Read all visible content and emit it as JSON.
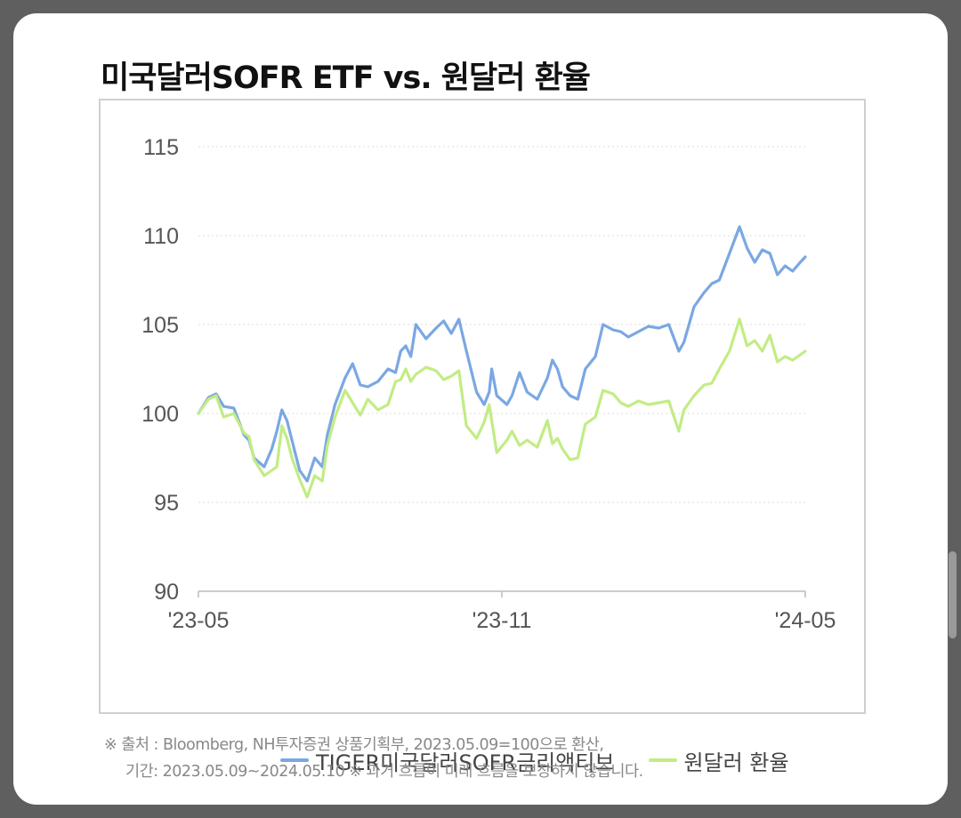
{
  "title": "미국달러SOFR ETF vs. 원달러 환율",
  "footnote": {
    "line1": "※ 출처 : Bloomberg, NH투자증권 상품기획부, 2023.05.09=100으로 환산,",
    "line2": "기간:  2023.05.09~2024.05.10  ※ 과거 흐름이 미래 흐름을 보장하지 않습니다."
  },
  "chart_data": {
    "type": "line",
    "title": "미국달러SOFR ETF vs. 원달러 환율",
    "xlabel": "",
    "ylabel": "",
    "ylim": [
      90,
      115
    ],
    "yticks": [
      90,
      95,
      100,
      105,
      110,
      115
    ],
    "xlim": [
      0,
      12
    ],
    "x_ticks": [
      {
        "x": 0,
        "label": "'23-05"
      },
      {
        "x": 6,
        "label": "'23-11"
      },
      {
        "x": 12,
        "label": "'24-05"
      }
    ],
    "grid": true,
    "legend_position": "bottom",
    "x": [
      0,
      0.2,
      0.35,
      0.5,
      0.7,
      0.9,
      1.0,
      1.1,
      1.3,
      1.45,
      1.55,
      1.65,
      1.75,
      1.85,
      2.0,
      2.15,
      2.3,
      2.45,
      2.55,
      2.7,
      2.9,
      3.05,
      3.2,
      3.35,
      3.55,
      3.75,
      3.9,
      4.0,
      4.1,
      4.2,
      4.3,
      4.5,
      4.7,
      4.85,
      5.0,
      5.15,
      5.3,
      5.5,
      5.65,
      5.75,
      5.8,
      5.9,
      6.1,
      6.2,
      6.35,
      6.5,
      6.7,
      6.9,
      7.0,
      7.1,
      7.2,
      7.35,
      7.5,
      7.65,
      7.85,
      8.0,
      8.2,
      8.35,
      8.5,
      8.7,
      8.9,
      9.1,
      9.3,
      9.5,
      9.6,
      9.8,
      10.0,
      10.15,
      10.3,
      10.5,
      10.7,
      10.85,
      11.0,
      11.15,
      11.3,
      11.45,
      11.6,
      11.75,
      11.9,
      12.0
    ],
    "series": [
      {
        "name": "TIGER미국달러SOFR금리액티브",
        "color": "#7ba7e3",
        "values": [
          100.0,
          100.9,
          101.1,
          100.4,
          100.3,
          98.8,
          98.5,
          97.5,
          97.0,
          98.0,
          99.0,
          100.2,
          99.6,
          98.5,
          96.8,
          96.2,
          97.5,
          97.0,
          98.8,
          100.5,
          102.0,
          102.8,
          101.6,
          101.5,
          101.8,
          102.5,
          102.3,
          103.5,
          103.8,
          103.2,
          105.0,
          104.2,
          104.8,
          105.2,
          104.5,
          105.3,
          103.5,
          101.2,
          100.5,
          101.2,
          102.5,
          101.0,
          100.5,
          101.0,
          102.3,
          101.2,
          100.8,
          102.0,
          103.0,
          102.5,
          101.5,
          101.0,
          100.8,
          102.5,
          103.2,
          105.0,
          104.7,
          104.6,
          104.3,
          104.6,
          104.9,
          104.8,
          105.0,
          103.5,
          104.0,
          106.0,
          106.8,
          107.3,
          107.5,
          109.0,
          110.5,
          109.3,
          108.5,
          109.2,
          109.0,
          107.8,
          108.3,
          108.0,
          108.5,
          108.8
        ]
      },
      {
        "name": "원달러 환율",
        "color": "#c2ec84",
        "values": [
          100.0,
          100.8,
          101.0,
          99.8,
          100.0,
          98.9,
          98.7,
          97.4,
          96.5,
          96.8,
          97.0,
          99.3,
          98.6,
          97.5,
          96.3,
          95.3,
          96.5,
          96.2,
          98.2,
          99.8,
          101.3,
          100.6,
          99.9,
          100.8,
          100.2,
          100.5,
          101.8,
          101.9,
          102.5,
          101.8,
          102.2,
          102.6,
          102.4,
          101.9,
          102.1,
          102.4,
          99.3,
          98.6,
          99.5,
          100.5,
          99.6,
          97.8,
          98.5,
          99.0,
          98.2,
          98.5,
          98.1,
          99.6,
          98.3,
          98.6,
          98.0,
          97.4,
          97.5,
          99.4,
          99.8,
          101.3,
          101.1,
          100.6,
          100.4,
          100.7,
          100.5,
          100.6,
          100.7,
          99.0,
          100.2,
          101.0,
          101.6,
          101.7,
          102.5,
          103.5,
          105.3,
          103.8,
          104.1,
          103.5,
          104.4,
          102.9,
          103.2,
          103.0,
          103.3,
          103.5
        ]
      }
    ]
  }
}
